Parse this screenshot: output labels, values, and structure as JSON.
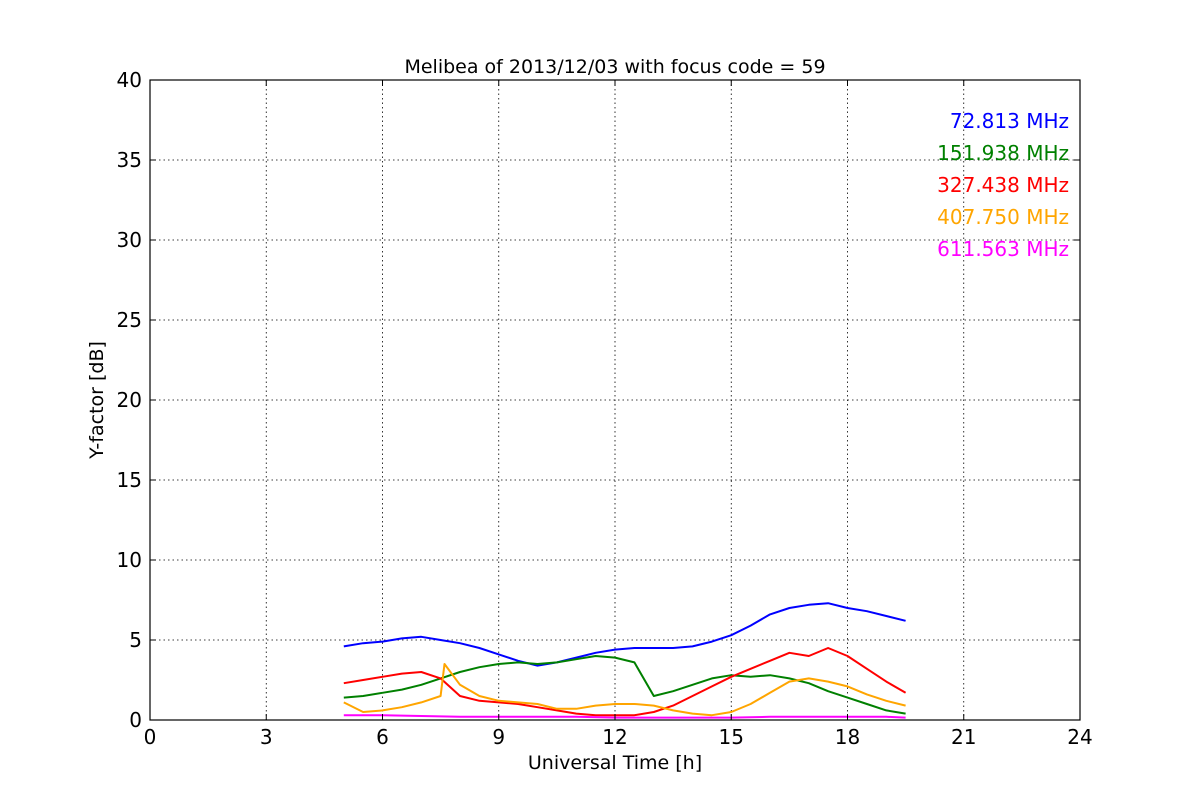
{
  "chart_data": {
    "type": "line",
    "title": "Melibea of 2013/12/03 with focus code = 59",
    "xlabel": "Universal Time [h]",
    "ylabel": "Y-factor [dB]",
    "xlim": [
      0,
      24
    ],
    "ylim": [
      0,
      40
    ],
    "xticks": [
      0,
      3,
      6,
      9,
      12,
      15,
      18,
      21,
      24
    ],
    "yticks": [
      0,
      5,
      10,
      15,
      20,
      25,
      30,
      35,
      40
    ],
    "grid": true,
    "legend_position": "top-right",
    "series": [
      {
        "name": "72.813 MHz",
        "color": "#0000ff",
        "x": [
          5.0,
          5.5,
          6.0,
          6.5,
          7.0,
          7.5,
          8.0,
          8.5,
          9.0,
          9.5,
          10.0,
          10.5,
          11.0,
          11.5,
          12.0,
          12.5,
          13.0,
          13.5,
          14.0,
          14.5,
          15.0,
          15.5,
          16.0,
          16.5,
          17.0,
          17.5,
          18.0,
          18.5,
          19.0,
          19.5
        ],
        "y": [
          4.6,
          4.8,
          4.9,
          5.1,
          5.2,
          5.0,
          4.8,
          4.5,
          4.1,
          3.7,
          3.4,
          3.6,
          3.9,
          4.2,
          4.4,
          4.5,
          4.5,
          4.5,
          4.6,
          4.9,
          5.3,
          5.9,
          6.6,
          7.0,
          7.2,
          7.3,
          7.0,
          6.8,
          6.5,
          6.2
        ]
      },
      {
        "name": "151.938 MHz",
        "color": "#008000",
        "x": [
          5.0,
          5.5,
          6.0,
          6.5,
          7.0,
          7.5,
          8.0,
          8.5,
          9.0,
          9.5,
          10.0,
          10.5,
          11.0,
          11.5,
          12.0,
          12.5,
          13.0,
          13.5,
          14.0,
          14.5,
          15.0,
          15.5,
          16.0,
          16.5,
          17.0,
          17.5,
          18.0,
          18.5,
          19.0,
          19.5
        ],
        "y": [
          1.4,
          1.5,
          1.7,
          1.9,
          2.2,
          2.6,
          3.0,
          3.3,
          3.5,
          3.6,
          3.5,
          3.6,
          3.8,
          4.0,
          3.9,
          3.6,
          1.5,
          1.8,
          2.2,
          2.6,
          2.8,
          2.7,
          2.8,
          2.6,
          2.3,
          1.8,
          1.4,
          1.0,
          0.6,
          0.4
        ]
      },
      {
        "name": "327.438 MHz",
        "color": "#ff0000",
        "x": [
          5.0,
          5.5,
          6.0,
          6.5,
          7.0,
          7.5,
          8.0,
          8.5,
          9.0,
          9.5,
          10.0,
          10.5,
          11.0,
          11.5,
          12.0,
          12.5,
          13.0,
          13.5,
          14.0,
          14.5,
          15.0,
          15.5,
          16.0,
          16.5,
          17.0,
          17.5,
          18.0,
          18.5,
          19.0,
          19.5
        ],
        "y": [
          2.3,
          2.5,
          2.7,
          2.9,
          3.0,
          2.6,
          1.5,
          1.2,
          1.1,
          1.0,
          0.8,
          0.6,
          0.4,
          0.3,
          0.3,
          0.3,
          0.5,
          0.9,
          1.5,
          2.1,
          2.7,
          3.2,
          3.7,
          4.2,
          4.0,
          4.5,
          4.0,
          3.2,
          2.4,
          1.7
        ]
      },
      {
        "name": "407.750 MHz",
        "color": "#ffa500",
        "x": [
          5.0,
          5.5,
          6.0,
          6.5,
          7.0,
          7.5,
          7.6,
          8.0,
          8.5,
          9.0,
          9.5,
          10.0,
          10.5,
          11.0,
          11.5,
          12.0,
          12.5,
          13.0,
          13.5,
          14.0,
          14.5,
          15.0,
          15.5,
          16.0,
          16.5,
          17.0,
          17.5,
          18.0,
          18.5,
          19.0,
          19.5
        ],
        "y": [
          1.1,
          0.5,
          0.6,
          0.8,
          1.1,
          1.5,
          3.5,
          2.2,
          1.5,
          1.2,
          1.1,
          1.0,
          0.7,
          0.7,
          0.9,
          1.0,
          1.0,
          0.9,
          0.6,
          0.4,
          0.3,
          0.5,
          1.0,
          1.7,
          2.4,
          2.6,
          2.4,
          2.1,
          1.6,
          1.2,
          0.9
        ]
      },
      {
        "name": "611.563 MHz",
        "color": "#ff00ff",
        "x": [
          5.0,
          6.0,
          7.0,
          8.0,
          9.0,
          10.0,
          11.0,
          12.0,
          13.0,
          14.0,
          15.0,
          16.0,
          17.0,
          18.0,
          19.0,
          19.5
        ],
        "y": [
          0.3,
          0.3,
          0.25,
          0.2,
          0.2,
          0.2,
          0.2,
          0.15,
          0.15,
          0.15,
          0.15,
          0.2,
          0.2,
          0.2,
          0.2,
          0.15
        ]
      }
    ]
  }
}
